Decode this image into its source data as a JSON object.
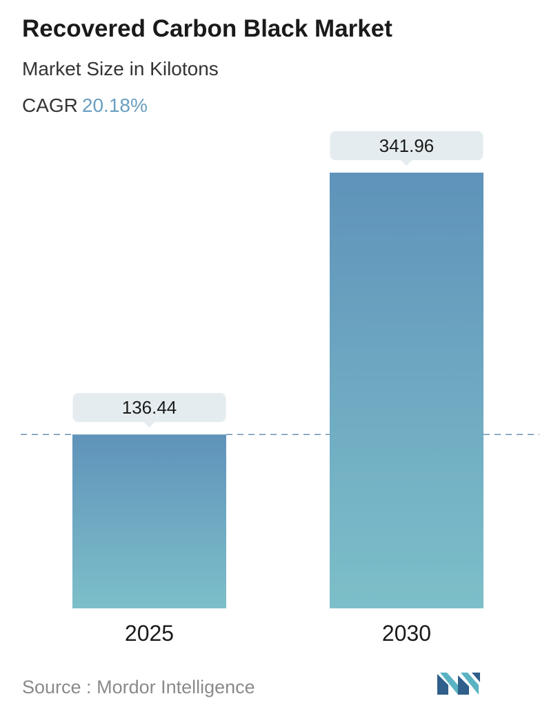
{
  "header": {
    "title": "Recovered Carbon Black Market",
    "subtitle": "Market Size in Kilotons",
    "cagr_label": "CAGR",
    "cagr_value": "20.18%"
  },
  "chart_data": {
    "type": "bar",
    "categories": [
      "2025",
      "2030"
    ],
    "values": [
      136.44,
      341.96
    ],
    "value_labels": [
      "136.44",
      "341.96"
    ],
    "title": "Recovered Carbon Black Market",
    "subtitle": "Market Size in Kilotons",
    "xlabel": "",
    "ylabel": "",
    "ylim": [
      0,
      341.96
    ],
    "grid": false,
    "reference_line": {
      "value": 136.44,
      "style": "dashed"
    },
    "colors": {
      "bar_top": "#5f93ba",
      "bar_bottom": "#7dbfc9",
      "label_bg": "#e4ecef",
      "dash": "#6a8faf"
    }
  },
  "footer": {
    "source_label": "Source :",
    "source_value": "Mordor Intelligence",
    "logo_icon": "mordor-intelligence-logo"
  }
}
